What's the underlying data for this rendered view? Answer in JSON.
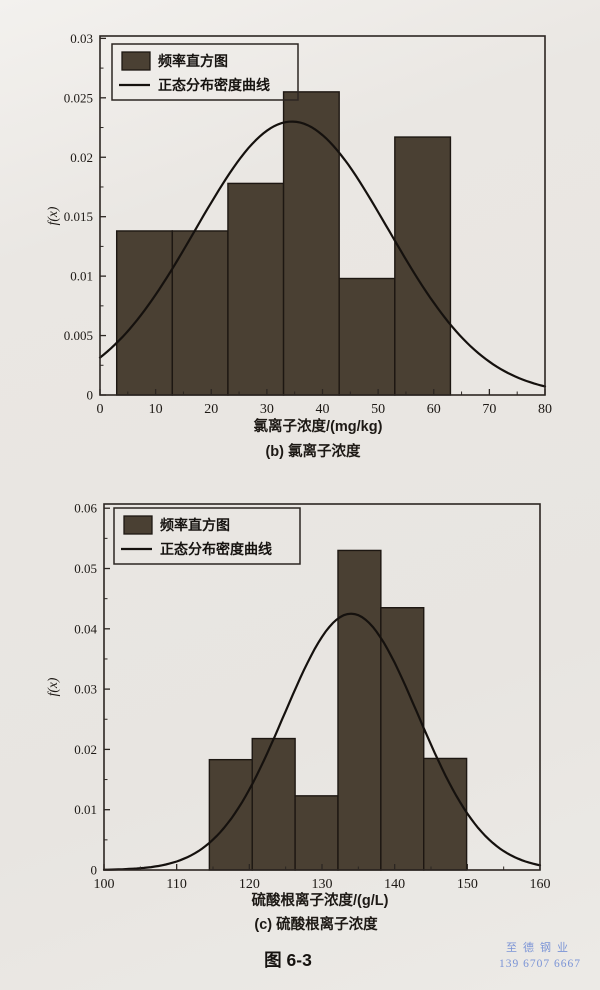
{
  "page": {
    "figure_caption": "图 6-3",
    "watermark": {
      "line1": "至德钢业",
      "line2": "139 6707 6667",
      "color": "#7b94d6"
    }
  },
  "chart_data": [
    {
      "type": "bar",
      "subtype": "frequency_histogram_with_normal_density_curve",
      "title": "",
      "ylabel": "f(x)",
      "xlabel": "氯离子浓度/(mg/kg)",
      "caption": "(b) 氯离子浓度",
      "legend": [
        "频率直方图",
        "正态分布密度曲线"
      ],
      "legend_position": "upper-left",
      "xlim": [
        0,
        80
      ],
      "ylim": [
        0,
        0.03
      ],
      "xticks": [
        0,
        10,
        20,
        30,
        40,
        50,
        60,
        70,
        80
      ],
      "ytick_labels": [
        "0",
        "0.005",
        "0.01",
        "0.015",
        "0.02",
        "0.025",
        "0.03"
      ],
      "ytick_values": [
        0,
        0.005,
        0.01,
        0.015,
        0.02,
        0.025,
        0.03
      ],
      "bin_edges": [
        3,
        13,
        23,
        33,
        43,
        53,
        63
      ],
      "frequencies": [
        0.0138,
        0.0138,
        0.0178,
        0.0255,
        0.0098,
        0.0217
      ],
      "normal_curve": {
        "mean": 34.5,
        "sigma": 17.3,
        "peak": 0.023
      },
      "bar_color": "#4a4033",
      "bar_edge_color": "#1d1712",
      "curve_color": "#15110e",
      "grid": false
    },
    {
      "type": "bar",
      "subtype": "frequency_histogram_with_normal_density_curve",
      "title": "",
      "ylabel": "f(x)",
      "xlabel": "硫酸根离子浓度/(g/L)",
      "caption": "(c) 硫酸根离子浓度",
      "legend": [
        "频率直方图",
        "正态分布密度曲线"
      ],
      "legend_position": "upper-left",
      "xlim": [
        100,
        160
      ],
      "ylim": [
        0,
        0.06
      ],
      "xticks": [
        100,
        110,
        120,
        130,
        140,
        150,
        160
      ],
      "ytick_labels": [
        "0",
        "0.01",
        "0.02",
        "0.03",
        "0.04",
        "0.05",
        "0.06"
      ],
      "ytick_values": [
        0,
        0.01,
        0.02,
        0.03,
        0.04,
        0.05,
        0.06
      ],
      "bin_edges": [
        114.5,
        120.4,
        126.3,
        132.2,
        138.1,
        144.0,
        149.9
      ],
      "frequencies": [
        0.0183,
        0.0218,
        0.0123,
        0.053,
        0.0435,
        0.0185
      ],
      "normal_curve": {
        "mean": 134.0,
        "sigma": 9.2,
        "peak": 0.0425
      },
      "bar_color": "#4a4033",
      "bar_edge_color": "#1d1712",
      "curve_color": "#15110e",
      "grid": false
    }
  ]
}
